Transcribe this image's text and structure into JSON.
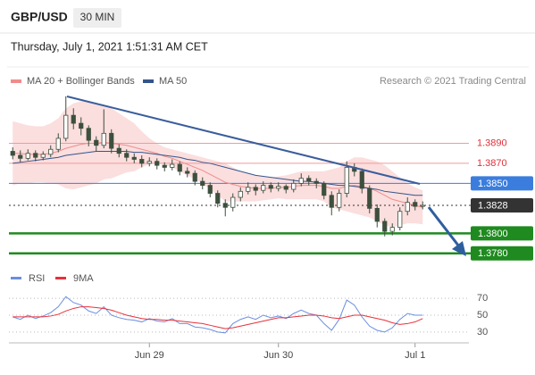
{
  "header": {
    "symbol": "GBP/USD",
    "timeframe": "30 MIN",
    "datetime": "Thursday, July 1, 2021 1:51:31 AM CET"
  },
  "chart_data": [
    {
      "type": "candlestick",
      "source": "Research © 2021 Trading Central",
      "categories": [
        null,
        null,
        null,
        null,
        null,
        null,
        null,
        null,
        null,
        null,
        null,
        null,
        null,
        null,
        null,
        null,
        null,
        null,
        "Jun 29",
        null,
        null,
        null,
        null,
        null,
        null,
        null,
        null,
        null,
        null,
        null,
        null,
        null,
        null,
        null,
        null,
        "Jun 30",
        null,
        null,
        null,
        null,
        null,
        null,
        null,
        null,
        null,
        null,
        null,
        null,
        null,
        null,
        null,
        null,
        null,
        "Jul 1",
        null
      ],
      "ohlc": [
        [
          1.3882,
          1.3886,
          1.3874,
          1.3878
        ],
        [
          1.3878,
          1.3883,
          1.3871,
          1.3875
        ],
        [
          1.3875,
          1.3884,
          1.3873,
          1.388
        ],
        [
          1.388,
          1.3883,
          1.3872,
          1.3876
        ],
        [
          1.3876,
          1.3882,
          1.3873,
          1.3879
        ],
        [
          1.3879,
          1.3888,
          1.3876,
          1.3884
        ],
        [
          1.3884,
          1.39,
          1.3881,
          1.3895
        ],
        [
          1.3895,
          1.3937,
          1.3892,
          1.3918
        ],
        [
          1.3918,
          1.3925,
          1.3904,
          1.391
        ],
        [
          1.391,
          1.3916,
          1.3898,
          1.3905
        ],
        [
          1.3905,
          1.3908,
          1.3887,
          1.3893
        ],
        [
          1.3893,
          1.3897,
          1.3882,
          1.3888
        ],
        [
          1.3888,
          1.3924,
          1.3885,
          1.39
        ],
        [
          1.39,
          1.3904,
          1.388,
          1.3885
        ],
        [
          1.3885,
          1.3889,
          1.3876,
          1.388
        ],
        [
          1.388,
          1.3884,
          1.3872,
          1.3876
        ],
        [
          1.3876,
          1.388,
          1.387,
          1.3874
        ],
        [
          1.3874,
          1.3878,
          1.3866,
          1.387
        ],
        [
          1.387,
          1.3876,
          1.3867,
          1.3872
        ],
        [
          1.3872,
          1.3875,
          1.3864,
          1.3868
        ],
        [
          1.3868,
          1.3871,
          1.3862,
          1.3866
        ],
        [
          1.3866,
          1.3874,
          1.3863,
          1.3869
        ],
        [
          1.3869,
          1.3872,
          1.3858,
          1.3862
        ],
        [
          1.3862,
          1.3866,
          1.3856,
          1.386
        ],
        [
          1.386,
          1.3863,
          1.3848,
          1.3852
        ],
        [
          1.3852,
          1.3856,
          1.3844,
          1.3848
        ],
        [
          1.3848,
          1.3851,
          1.3836,
          1.384
        ],
        [
          1.384,
          1.3843,
          1.3826,
          1.383
        ],
        [
          1.383,
          1.3834,
          1.3817,
          1.3826
        ],
        [
          1.3826,
          1.384,
          1.3822,
          1.3836
        ],
        [
          1.3836,
          1.3846,
          1.3832,
          1.3842
        ],
        [
          1.3842,
          1.3851,
          1.3839,
          1.3846
        ],
        [
          1.3846,
          1.3849,
          1.3838,
          1.3843
        ],
        [
          1.3843,
          1.3852,
          1.384,
          1.3848
        ],
        [
          1.3848,
          1.3851,
          1.3841,
          1.3845
        ],
        [
          1.3845,
          1.3851,
          1.3842,
          1.3847
        ],
        [
          1.3847,
          1.3849,
          1.384,
          1.3844
        ],
        [
          1.3844,
          1.3854,
          1.3841,
          1.385
        ],
        [
          1.385,
          1.386,
          1.3847,
          1.3855
        ],
        [
          1.3855,
          1.3858,
          1.3848,
          1.3852
        ],
        [
          1.3852,
          1.3855,
          1.3845,
          1.385
        ],
        [
          1.385,
          1.3852,
          1.3834,
          1.3838
        ],
        [
          1.3838,
          1.3842,
          1.3818,
          1.3826
        ],
        [
          1.3826,
          1.3844,
          1.3822,
          1.384
        ],
        [
          1.384,
          1.3872,
          1.3836,
          1.3866
        ],
        [
          1.3866,
          1.387,
          1.3857,
          1.3862
        ],
        [
          1.3862,
          1.3865,
          1.384,
          1.3845
        ],
        [
          1.3845,
          1.3848,
          1.382,
          1.3825
        ],
        [
          1.3825,
          1.3829,
          1.3806,
          1.3812
        ],
        [
          1.3812,
          1.3815,
          1.3797,
          1.3802
        ],
        [
          1.3802,
          1.381,
          1.3798,
          1.3806
        ],
        [
          1.3806,
          1.3826,
          1.3803,
          1.3822
        ],
        [
          1.3822,
          1.3836,
          1.3818,
          1.3831
        ],
        [
          1.3831,
          1.3834,
          1.3823,
          1.3827
        ],
        [
          1.3827,
          1.3832,
          1.3824,
          1.3828
        ]
      ],
      "up_color": "#ffffff",
      "down_color": "#3d4f3d",
      "candle_border": "#3d4f3d",
      "band": {
        "color": "#f8c8c8",
        "upper": [
          1.3912,
          1.391,
          1.3908,
          1.3907,
          1.3907,
          1.391,
          1.3915,
          1.3925,
          1.393,
          1.3932,
          1.3932,
          1.393,
          1.3928,
          1.3925,
          1.392,
          1.3915,
          1.391,
          1.3902,
          1.3895,
          1.389,
          1.3886,
          1.3884,
          1.3882,
          1.388,
          1.3878,
          1.3876,
          1.3874,
          1.3872,
          1.387,
          1.3866,
          1.3862,
          1.386,
          1.3858,
          1.3857,
          1.3856,
          1.3857,
          1.3858,
          1.386,
          1.3862,
          1.3862,
          1.3862,
          1.3862,
          1.3864,
          1.3866,
          1.3872,
          1.3876,
          1.3876,
          1.3874,
          1.3872,
          1.3868,
          1.3862,
          1.3856,
          1.385,
          1.3846,
          1.3843
        ],
        "lower": [
          1.3848,
          1.385,
          1.385,
          1.3851,
          1.3851,
          1.385,
          1.3849,
          1.3845,
          1.3844,
          1.3846,
          1.3848,
          1.385,
          1.3854,
          1.3855,
          1.3858,
          1.3861,
          1.3862,
          1.3866,
          1.3869,
          1.387,
          1.3868,
          1.3866,
          1.3862,
          1.3858,
          1.3854,
          1.385,
          1.3844,
          1.3838,
          1.3832,
          1.3832,
          1.3832,
          1.3832,
          1.3832,
          1.3833,
          1.3834,
          1.3835,
          1.3834,
          1.3834,
          1.3834,
          1.3834,
          1.3834,
          1.3832,
          1.3826,
          1.3824,
          1.3822,
          1.382,
          1.3818,
          1.3816,
          1.3812,
          1.3808,
          1.3806,
          1.3808,
          1.381,
          1.381,
          1.3809
        ]
      },
      "series": [
        {
          "name": "MA 20 + Bollinger Bands",
          "color": "#f08c8c",
          "values": [
            1.388,
            1.388,
            1.3879,
            1.3879,
            1.3879,
            1.388,
            1.3882,
            1.3885,
            1.3887,
            1.3889,
            1.389,
            1.389,
            1.3891,
            1.389,
            1.3889,
            1.3888,
            1.3886,
            1.3884,
            1.3882,
            1.388,
            1.3877,
            1.3875,
            1.3872,
            1.3869,
            1.3866,
            1.3863,
            1.3859,
            1.3855,
            1.3851,
            1.3849,
            1.3847,
            1.3846,
            1.3845,
            1.3845,
            1.3845,
            1.3846,
            1.3846,
            1.3847,
            1.3848,
            1.3848,
            1.3848,
            1.3847,
            1.3845,
            1.3845,
            1.3847,
            1.3848,
            1.3847,
            1.3845,
            1.3842,
            1.3838,
            1.3834,
            1.3832,
            1.383,
            1.3828,
            1.3826
          ]
        },
        {
          "name": "MA 50",
          "color": "#34558b",
          "values": [
            1.387,
            1.3871,
            1.3872,
            1.3873,
            1.3874,
            1.3875,
            1.3876,
            1.3878,
            1.3879,
            1.388,
            1.3881,
            1.3882,
            1.3882,
            1.3882,
            1.3882,
            1.3882,
            1.3881,
            1.3881,
            1.388,
            1.3879,
            1.3878,
            1.3877,
            1.3876,
            1.3874,
            1.3873,
            1.3871,
            1.387,
            1.3868,
            1.3866,
            1.3864,
            1.3862,
            1.386,
            1.3858,
            1.3857,
            1.3856,
            1.3855,
            1.3854,
            1.3853,
            1.3852,
            1.3852,
            1.3851,
            1.385,
            1.3849,
            1.3848,
            1.3848,
            1.3847,
            1.3846,
            1.3845,
            1.3844,
            1.3842,
            1.3841,
            1.384,
            1.3839,
            1.3838,
            1.3838
          ]
        }
      ],
      "ylim": [
        1.377,
        1.3944
      ],
      "levels": [
        {
          "value": 1.389,
          "label": "1.3890",
          "color": "#f29a9a",
          "style": "thin"
        },
        {
          "value": 1.387,
          "label": "1.3870",
          "color": "#f29a9a",
          "style": "thin"
        },
        {
          "value": 1.385,
          "label": "1.3850",
          "color": "#3b7ddd",
          "style": "box"
        },
        {
          "value": 1.3828,
          "label": "1.3828",
          "color": "#333333",
          "style": "dotted"
        },
        {
          "value": 1.38,
          "label": "1.3800",
          "color": "#1f8a1f",
          "style": "thick"
        },
        {
          "value": 1.378,
          "label": "1.3780",
          "color": "#1f8a1f",
          "style": "thick"
        }
      ]
    },
    {
      "type": "line",
      "series": [
        {
          "name": "RSI",
          "color": "#6a8fe0",
          "values": [
            48,
            45,
            50,
            46,
            49,
            53,
            60,
            72,
            65,
            62,
            55,
            52,
            60,
            50,
            47,
            45,
            44,
            42,
            46,
            43,
            42,
            46,
            40,
            40,
            36,
            35,
            33,
            30,
            29,
            40,
            45,
            48,
            45,
            50,
            47,
            49,
            46,
            52,
            56,
            52,
            50,
            40,
            32,
            45,
            68,
            62,
            48,
            37,
            32,
            30,
            35,
            45,
            52,
            50,
            50
          ]
        },
        {
          "name": "9MA",
          "color": "#e8303a",
          "values": [
            48,
            48,
            48,
            48,
            48,
            49,
            51,
            55,
            58,
            60,
            60,
            59,
            58,
            56,
            53,
            50,
            48,
            46,
            45,
            45,
            44,
            44,
            43,
            42,
            41,
            40,
            38,
            36,
            34,
            35,
            37,
            39,
            41,
            43,
            45,
            47,
            47,
            48,
            49,
            50,
            50,
            49,
            47,
            46,
            48,
            50,
            50,
            48,
            46,
            44,
            41,
            39,
            40,
            42,
            46
          ]
        }
      ],
      "ylim": [
        15,
        85
      ],
      "yticks": [
        30,
        50,
        70
      ],
      "grid": true
    }
  ]
}
